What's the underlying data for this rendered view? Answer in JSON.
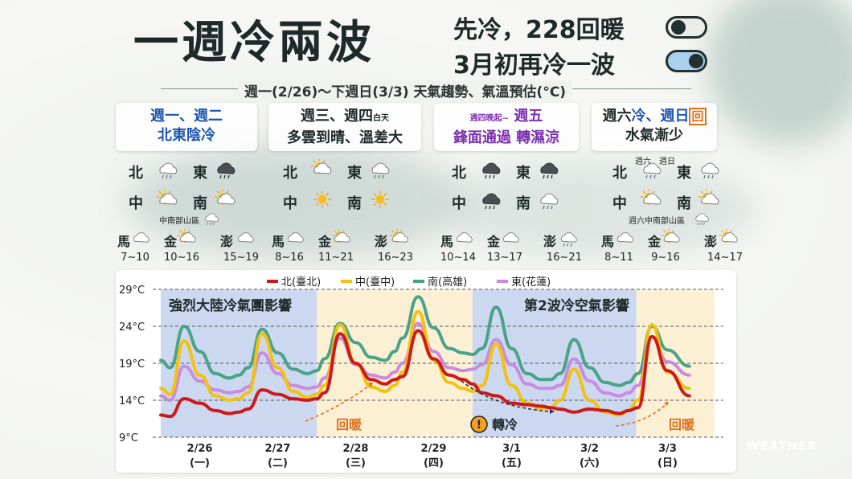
{
  "header": {
    "title": "一週冷兩波",
    "line1": "先冷，228回暖",
    "line2": "3月初再冷一波",
    "date_range": "週一(2/26)～下週日(3/3) 天氣趨勢、氣溫預估(°C)"
  },
  "cards": [
    {
      "line1": "週一、週二",
      "line2": "北東陰冷"
    },
    {
      "line1": "週三、週四",
      "line1_small": "白天",
      "line2": "多雲到晴、溫差大"
    },
    {
      "line1_small": "週四晚起~",
      "line1": "週五",
      "line2": "鋒面通過 轉濕涼"
    },
    {
      "line1_a": "週六",
      "line1_b": "冷、週日",
      "line1_c": "回",
      "line2": "水氣漸少"
    }
  ],
  "regions": {
    "north": "北",
    "east": "東",
    "central": "中",
    "south": "南",
    "matsu": "馬",
    "kinmen": "金",
    "penghu": "澎"
  },
  "notes": {
    "central_south_mountain": "中南部山區",
    "sat": "週六",
    "sun": "週日",
    "sat_central_south_mountain": "週六中南部山區"
  },
  "icons": {
    "g1": {
      "north": "cloud-rain-icon",
      "east": "dark-cloud-rain-icon",
      "central": "partly-cloudy-icon",
      "south": "partly-cloudy-icon",
      "mountain": "cloud-rain-icon"
    },
    "g2": {
      "north": "partly-cloudy-icon",
      "east": "cloud-rain-icon",
      "central": "sun-icon",
      "south": "sun-icon"
    },
    "g3": {
      "north": "dark-cloud-rain-icon",
      "east": "dark-cloud-rain-icon",
      "central": "dark-cloud-rain-icon",
      "south": "cloud-rain-icon"
    },
    "g4": {
      "north": "cloud-rain-icon",
      "east": "cloud-rain-icon",
      "central": "partly-cloudy-icon",
      "south": "partly-cloudy-icon",
      "mountain": "cloud-rain-icon"
    }
  },
  "islands": [
    {
      "matsu": "7~10",
      "kinmen": "10~16",
      "penghu": "15~19"
    },
    {
      "matsu": "8~16",
      "kinmen": "11~21",
      "penghu": "16~23"
    },
    {
      "matsu": "10~14",
      "kinmen": "13~17",
      "penghu": "16~21"
    },
    {
      "matsu": "8~11",
      "kinmen": "9~16",
      "penghu": "14~17"
    }
  ],
  "chart_data": {
    "type": "line",
    "ylim": [
      9,
      29
    ],
    "yticks": [
      "9°C",
      "14°C",
      "19°C",
      "24°C",
      "29°C"
    ],
    "ytick_values": [
      9,
      14,
      19,
      24,
      29
    ],
    "x_labels": [
      {
        "date": "2/26",
        "dow": "(一)"
      },
      {
        "date": "2/27",
        "dow": "(二)"
      },
      {
        "date": "2/28",
        "dow": "(三)"
      },
      {
        "date": "2/29",
        "dow": "(四)"
      },
      {
        "date": "3/1",
        "dow": "(五)"
      },
      {
        "date": "3/2",
        "dow": "(六)"
      },
      {
        "date": "3/3",
        "dow": "(日)"
      }
    ],
    "series": [
      {
        "name": "北(臺北)",
        "color": "#cc1a1a",
        "x": [
          0,
          0.12,
          0.3,
          0.5,
          0.7,
          0.88,
          1,
          1.12,
          1.3,
          1.5,
          1.7,
          1.88,
          2,
          2.1,
          2.3,
          2.5,
          2.7,
          2.88,
          3,
          3.1,
          3.3,
          3.5,
          3.7,
          3.88,
          4,
          4.12,
          4.3,
          4.5,
          4.7,
          4.88,
          5,
          5.12,
          5.3,
          5.5,
          5.7,
          5.88,
          6,
          6.12,
          6.3,
          6.5,
          6.78
        ],
        "values": [
          12,
          11.8,
          14.2,
          13.6,
          12.6,
          12.2,
          12.4,
          12.8,
          15.4,
          14.8,
          14.2,
          14,
          14.2,
          15,
          23,
          19,
          16.8,
          16.2,
          16.8,
          17.2,
          23.4,
          19.6,
          17.4,
          16.8,
          16.2,
          15,
          14.6,
          13.6,
          13.4,
          13.2,
          13,
          12.8,
          12.4,
          12.8,
          12.6,
          12.2,
          12.6,
          13,
          22.6,
          18,
          14.6
        ]
      },
      {
        "name": "中(臺中)",
        "color": "#f2c20f",
        "x": [
          0,
          0.12,
          0.3,
          0.5,
          0.7,
          0.88,
          1,
          1.12,
          1.3,
          1.5,
          1.7,
          1.88,
          2,
          2.1,
          2.3,
          2.5,
          2.7,
          2.88,
          3,
          3.1,
          3.3,
          3.5,
          3.7,
          3.88,
          4,
          4.12,
          4.3,
          4.5,
          4.7,
          4.88,
          5,
          5.12,
          5.3,
          5.5,
          5.7,
          5.88,
          6,
          6.12,
          6.3,
          6.5,
          6.78
        ],
        "values": [
          15.6,
          14.8,
          22,
          17.4,
          14.6,
          14,
          14.2,
          15,
          23,
          18.4,
          15.2,
          14.4,
          14.8,
          16,
          24.2,
          19,
          15.8,
          15.2,
          16,
          17.8,
          26,
          19.4,
          16.4,
          15.6,
          15.2,
          16,
          21.6,
          16,
          13.6,
          12.8,
          13,
          14,
          18.2,
          14,
          12.4,
          12,
          12.6,
          14,
          24.2,
          17.8,
          15.6
        ]
      },
      {
        "name": "南(高雄)",
        "color": "#4aa389",
        "x": [
          0,
          0.12,
          0.3,
          0.5,
          0.7,
          0.88,
          1,
          1.12,
          1.3,
          1.5,
          1.7,
          1.88,
          2,
          2.1,
          2.3,
          2.5,
          2.7,
          2.88,
          3,
          3.1,
          3.3,
          3.5,
          3.7,
          3.88,
          4,
          4.12,
          4.3,
          4.5,
          4.7,
          4.88,
          5,
          5.12,
          5.3,
          5.5,
          5.7,
          5.88,
          6,
          6.12,
          6.3,
          6.5,
          6.78
        ],
        "values": [
          19.4,
          18.4,
          24,
          20.6,
          17.6,
          17,
          17.4,
          18.4,
          23.6,
          20.4,
          18.2,
          17.6,
          18,
          19.6,
          24.4,
          21.8,
          19.8,
          19.4,
          20.6,
          22.4,
          28,
          23.8,
          21,
          20.4,
          20.2,
          21,
          26.6,
          21,
          17.6,
          16.8,
          16.8,
          17.6,
          22.2,
          18.4,
          16.4,
          16,
          16.4,
          17.6,
          24,
          20.8,
          18.6
        ]
      },
      {
        "name": "東(花蓮)",
        "color": "#c98be0",
        "x": [
          0,
          0.12,
          0.3,
          0.5,
          0.7,
          0.88,
          1,
          1.12,
          1.3,
          1.5,
          1.7,
          1.88,
          2,
          2.1,
          2.3,
          2.5,
          2.7,
          2.88,
          3,
          3.1,
          3.3,
          3.5,
          3.7,
          3.88,
          4,
          4.12,
          4.3,
          4.5,
          4.7,
          4.88,
          5,
          5.12,
          5.3,
          5.5,
          5.7,
          5.88,
          6,
          6.12,
          6.3,
          6.5,
          6.78
        ],
        "values": [
          14.6,
          14,
          18.6,
          16.6,
          15.4,
          15,
          15.2,
          15.8,
          20.4,
          17.6,
          16,
          15.6,
          15.8,
          17,
          22.4,
          18.8,
          17.4,
          17,
          17.8,
          19,
          24.4,
          20.6,
          18.4,
          18,
          18.2,
          18.8,
          22.2,
          18.8,
          16.2,
          15.6,
          15.6,
          16,
          19.6,
          16.6,
          15,
          14.6,
          15,
          16,
          22.6,
          19.2,
          17.4
        ]
      }
    ],
    "annotations": {
      "band1": "強烈大陸冷氣團影響",
      "band2": "第2波冷空氣影響",
      "warm1": "回暖",
      "cold": "轉冷",
      "warm2": "回暖",
      "cold_icon": "exclamation-icon"
    },
    "colors": {
      "cold_band": "#c5d3ee",
      "warm_band": "#fbefd0",
      "grid": "#555"
    }
  },
  "watermark": "WEATHER"
}
